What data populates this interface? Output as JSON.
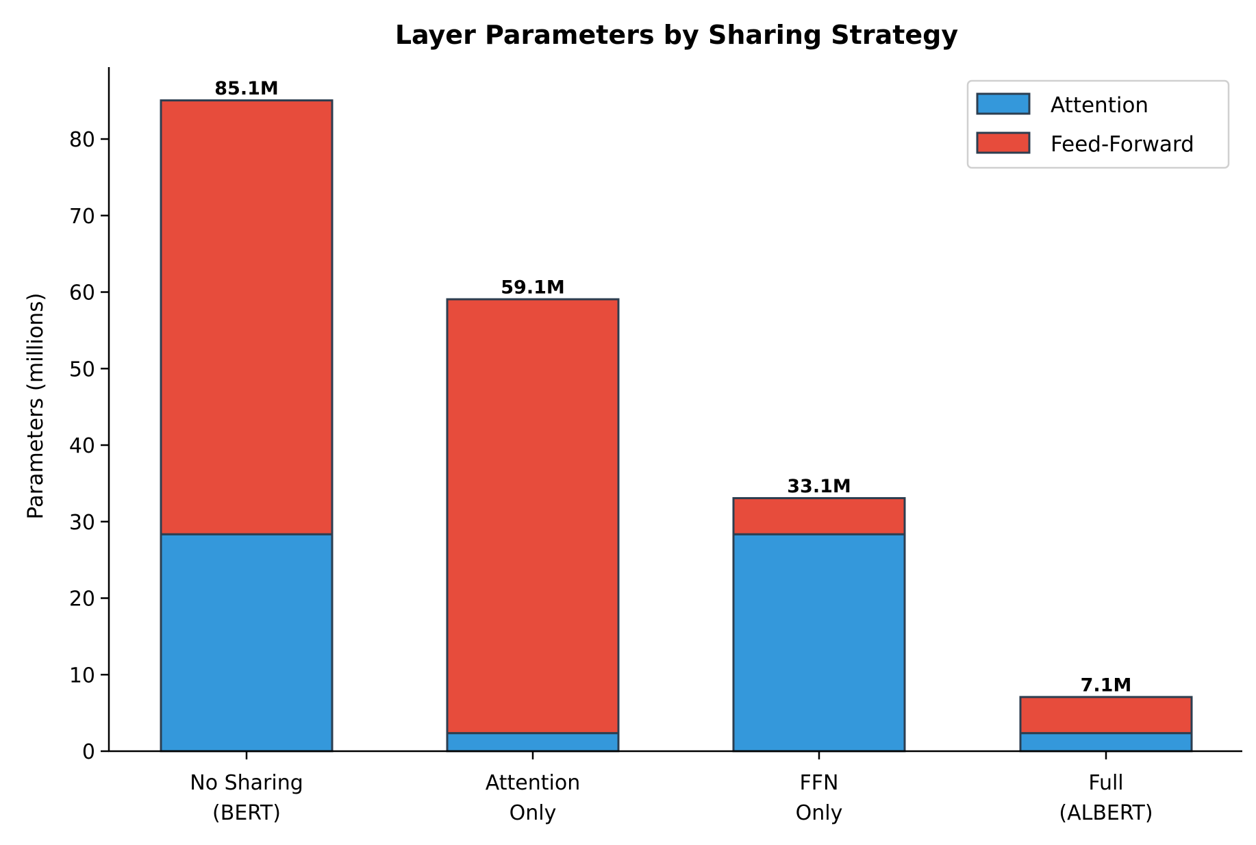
{
  "chart_data": {
    "type": "bar",
    "stacked": true,
    "title": "Layer Parameters by Sharing Strategy",
    "xlabel": "",
    "ylabel": "Parameters (millions)",
    "categories": [
      "No Sharing\n(BERT)",
      "Attention\nOnly",
      "FFN\nOnly",
      "Full\n(ALBERT)"
    ],
    "series": [
      {
        "name": "Attention",
        "color": "#3498db",
        "values": [
          28.35,
          2.36,
          28.35,
          2.36
        ]
      },
      {
        "name": "Feed-Forward",
        "color": "#e74c3c",
        "values": [
          56.7,
          56.7,
          4.72,
          4.72
        ]
      }
    ],
    "totals": [
      85.1,
      59.1,
      33.1,
      7.1
    ],
    "total_labels": [
      "85.1M",
      "59.1M",
      "33.1M",
      "7.1M"
    ],
    "ylim": [
      0,
      89.4
    ],
    "yticks": [
      0,
      10,
      20,
      30,
      40,
      50,
      60,
      70,
      80
    ],
    "grid": false,
    "legend_position": "upper right",
    "edge_color": "#2c3e50"
  }
}
